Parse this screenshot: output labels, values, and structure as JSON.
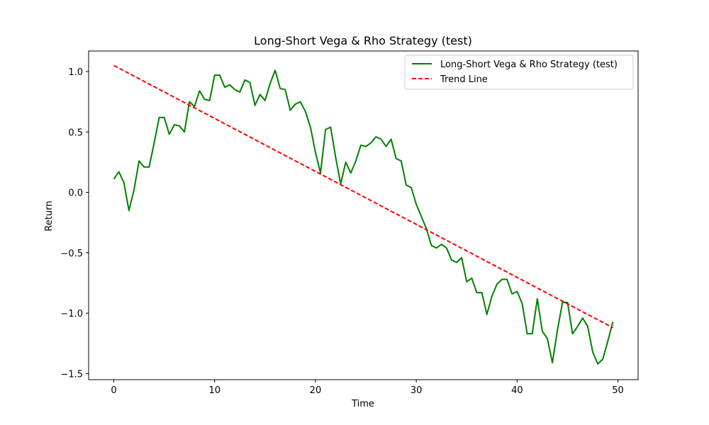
{
  "chart_data": {
    "type": "line",
    "title": "Long-Short Vega & Rho Strategy (test)",
    "xlabel": "Time",
    "ylabel": "Return",
    "xlim": [
      -2.5,
      52
    ],
    "ylim": [
      -1.55,
      1.17
    ],
    "xticks": [
      0,
      10,
      20,
      30,
      40,
      50
    ],
    "xtick_labels": [
      "0",
      "10",
      "20",
      "30",
      "40",
      "50"
    ],
    "yticks": [
      -1.5,
      -1.0,
      -0.5,
      0.0,
      0.5,
      1.0
    ],
    "ytick_labels": [
      "−1.5",
      "−1.0",
      "−0.5",
      "0.0",
      "0.5",
      "1.0"
    ],
    "grid": false,
    "legend_position": "top-right",
    "series": [
      {
        "name": "Long-Short Vega & Rho Strategy (test)",
        "color": "#008000",
        "style": "solid",
        "x": [
          0,
          0.5,
          1,
          1.5,
          2,
          2.5,
          3,
          3.5,
          4,
          4.5,
          5,
          5.5,
          6,
          6.5,
          7,
          7.5,
          8,
          8.5,
          9,
          9.5,
          10,
          10.5,
          11,
          11.5,
          12,
          12.5,
          13,
          13.5,
          14,
          14.5,
          15,
          15.5,
          16,
          16.5,
          17,
          17.5,
          18,
          18.5,
          19,
          19.5,
          20,
          20.5,
          21,
          21.5,
          22,
          22.5,
          23,
          23.5,
          24,
          24.5,
          25,
          25.5,
          26,
          26.5,
          27,
          27.5,
          28,
          28.5,
          29,
          29.5,
          30,
          30.5,
          31,
          31.5,
          32,
          32.5,
          33,
          33.5,
          34,
          34.5,
          35,
          35.5,
          36,
          36.5,
          37,
          37.5,
          38,
          38.5,
          39,
          39.5,
          40,
          40.5,
          41,
          41.5,
          42,
          42.5,
          43,
          43.5,
          44,
          44.5,
          45,
          45.5,
          46,
          46.5,
          47,
          47.5,
          48,
          48.5,
          49,
          49.5
        ],
        "values": [
          0.11,
          0.17,
          0.08,
          -0.15,
          0.02,
          0.26,
          0.21,
          0.21,
          0.41,
          0.62,
          0.62,
          0.48,
          0.56,
          0.55,
          0.5,
          0.75,
          0.71,
          0.84,
          0.77,
          0.76,
          0.97,
          0.97,
          0.87,
          0.89,
          0.85,
          0.83,
          0.93,
          0.91,
          0.72,
          0.81,
          0.76,
          0.9,
          1.01,
          0.86,
          0.85,
          0.68,
          0.73,
          0.75,
          0.67,
          0.54,
          0.33,
          0.16,
          0.52,
          0.54,
          0.29,
          0.07,
          0.25,
          0.16,
          0.26,
          0.39,
          0.38,
          0.41,
          0.46,
          0.44,
          0.38,
          0.44,
          0.28,
          0.26,
          0.06,
          0.04,
          -0.1,
          -0.2,
          -0.3,
          -0.44,
          -0.46,
          -0.43,
          -0.46,
          -0.56,
          -0.58,
          -0.54,
          -0.74,
          -0.71,
          -0.83,
          -0.83,
          -1.01,
          -0.86,
          -0.76,
          -0.72,
          -0.72,
          -0.84,
          -0.82,
          -0.92,
          -1.17,
          -1.17,
          -0.88,
          -1.15,
          -1.21,
          -1.41,
          -1.14,
          -0.91,
          -0.91,
          -1.17,
          -1.11,
          -1.04,
          -1.11,
          -1.32,
          -1.42,
          -1.38,
          -1.23,
          -1.07
        ]
      },
      {
        "name": "Trend Line",
        "color": "#ff0000",
        "style": "dashed",
        "x": [
          0,
          49.5
        ],
        "values": [
          1.05,
          -1.12
        ]
      }
    ]
  }
}
